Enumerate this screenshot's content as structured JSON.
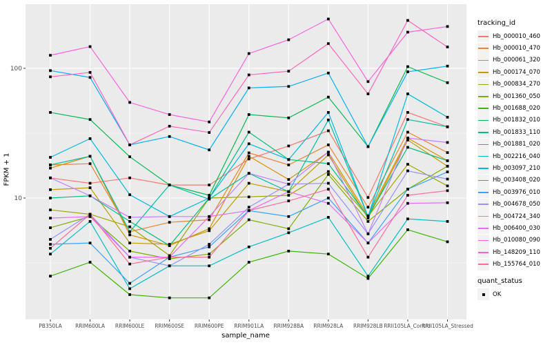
{
  "panel": {
    "background": "#EBEBEB",
    "gridline_color": "#FFFFFF",
    "tick_color": "#333333",
    "axis_text_color": "#4D4D4D",
    "point_color": "#000000"
  },
  "legend": {
    "tracking_title": "tracking_id",
    "quant_title": "quant_status",
    "quant_entries": [
      {
        "label": "OK",
        "marker": "black-square"
      }
    ]
  },
  "chart_data": {
    "type": "line",
    "title": "",
    "xlabel": "sample_name",
    "ylabel": "FPKM + 1",
    "yscale": "log10",
    "ylim": [
      1.15,
      320
    ],
    "grid": "on",
    "legend_position": "right",
    "point_shape": "filled-black-square",
    "y_major_ticks": [
      {
        "label": "100",
        "value": 100
      },
      {
        "label": "10",
        "value": 10
      }
    ],
    "y_minor_gridlines": [
      31.6,
      3.16
    ],
    "categories": [
      "PB350LA",
      "RRIM600LA",
      "RRIM600LE",
      "RRIM600SE",
      "RRIM600PE",
      "RRIM901LA",
      "RRIM928BA",
      "RRIM928LA",
      "RRIM928LB",
      "RRII105LA_Control",
      "RRII105LA_Stressed"
    ],
    "series": [
      {
        "name": "Hb_000010_460",
        "color": "#F8766D",
        "values": [
          14.3,
          13.0,
          14.3,
          12.6,
          12.6,
          20.0,
          25.2,
          33.0,
          10.1,
          45.7,
          35.4
        ]
      },
      {
        "name": "Hb_000010_470",
        "color": "#EA8331",
        "values": [
          18.0,
          18.4,
          5.5,
          6.5,
          6.8,
          22.3,
          18.0,
          25.7,
          8.5,
          32.2,
          22.4
        ]
      },
      {
        "name": "Hb_000061_320",
        "color": "#D89000",
        "values": [
          17.0,
          21.0,
          5.2,
          4.3,
          5.8,
          21.0,
          13.9,
          22.6,
          7.3,
          29.0,
          19.4
        ]
      },
      {
        "name": "Hb_000174_070",
        "color": "#C09B00",
        "values": [
          11.6,
          12.0,
          4.5,
          4.4,
          5.6,
          13.0,
          11.2,
          21.5,
          7.0,
          28.0,
          17.6
        ]
      },
      {
        "name": "Hb_000834_270",
        "color": "#A3A500",
        "values": [
          8.1,
          7.5,
          6.0,
          3.6,
          10.0,
          10.2,
          10.5,
          16.0,
          7.2,
          18.2,
          12.4
        ]
      },
      {
        "name": "Hb_001360_050",
        "color": "#7CAE00",
        "values": [
          5.9,
          7.2,
          3.9,
          3.4,
          3.7,
          6.8,
          5.8,
          15.2,
          6.6,
          11.7,
          17.6
        ]
      },
      {
        "name": "Hb_001688_020",
        "color": "#39B600",
        "values": [
          2.5,
          3.2,
          1.8,
          1.7,
          1.7,
          3.2,
          3.9,
          3.7,
          2.4,
          5.7,
          4.6
        ]
      },
      {
        "name": "Hb_001832_010",
        "color": "#00BB4E",
        "values": [
          45.7,
          40.3,
          20.8,
          12.6,
          10.5,
          44.0,
          41.5,
          60.0,
          24.9,
          103.0,
          77.5
        ]
      },
      {
        "name": "Hb_001833_110",
        "color": "#00BF7D",
        "values": [
          10.0,
          10.4,
          6.6,
          4.3,
          10.0,
          32.2,
          19.8,
          18.4,
          7.2,
          24.6,
          19.4
        ]
      },
      {
        "name": "Hb_001881_020",
        "color": "#00C1A3",
        "values": [
          18.0,
          21.0,
          5.5,
          12.6,
          9.8,
          15.5,
          11.2,
          40.0,
          7.2,
          40.3,
          35.4
        ]
      },
      {
        "name": "Hb_002216_040",
        "color": "#00BFC4",
        "values": [
          3.7,
          6.6,
          2.0,
          3.0,
          3.0,
          4.2,
          5.4,
          7.1,
          2.5,
          6.9,
          6.6
        ]
      },
      {
        "name": "Hb_003097_210",
        "color": "#00BAE0",
        "values": [
          20.6,
          28.7,
          10.6,
          7.2,
          10.0,
          26.2,
          19.8,
          45.7,
          7.2,
          63.5,
          42.0
        ]
      },
      {
        "name": "Hb_003408_020",
        "color": "#00B0F6",
        "values": [
          96.0,
          85.0,
          25.7,
          29.8,
          23.5,
          70.6,
          72.5,
          92.0,
          24.9,
          94.0,
          104.0
        ]
      },
      {
        "name": "Hb_003976_010",
        "color": "#35A2FF",
        "values": [
          4.4,
          4.5,
          2.2,
          3.5,
          4.2,
          8.0,
          7.2,
          10.0,
          4.5,
          11.7,
          15.9
        ]
      },
      {
        "name": "Hb_004678_050",
        "color": "#9590FF",
        "values": [
          4.8,
          7.5,
          3.5,
          3.0,
          4.4,
          8.5,
          12.8,
          13.0,
          5.3,
          16.2,
          14.0
        ]
      },
      {
        "name": "Hb_004724_340",
        "color": "#C77CFF",
        "values": [
          14.3,
          10.4,
          7.1,
          7.2,
          7.2,
          15.5,
          12.8,
          22.6,
          5.3,
          29.0,
          26.8
        ]
      },
      {
        "name": "Hb_006400_030",
        "color": "#E76BF3",
        "values": [
          7.0,
          7.2,
          3.5,
          3.5,
          7.2,
          8.0,
          11.2,
          9.1,
          4.5,
          9.1,
          9.2
        ]
      },
      {
        "name": "Hb_010080_090",
        "color": "#FA62DB",
        "values": [
          126,
          147,
          54.6,
          44.0,
          38.6,
          130,
          166,
          240,
          79.0,
          190,
          210
        ]
      },
      {
        "name": "Hb_148209_110",
        "color": "#FF62BC",
        "values": [
          86.0,
          93.0,
          25.7,
          35.8,
          32.0,
          89.0,
          95.0,
          155,
          63.5,
          234,
          146
        ]
      },
      {
        "name": "Hb_155764_010",
        "color": "#FF6A98",
        "values": [
          4.1,
          7.5,
          3.1,
          3.5,
          3.5,
          8.0,
          9.5,
          11.7,
          3.5,
          10.5,
          11.4
        ]
      }
    ]
  }
}
